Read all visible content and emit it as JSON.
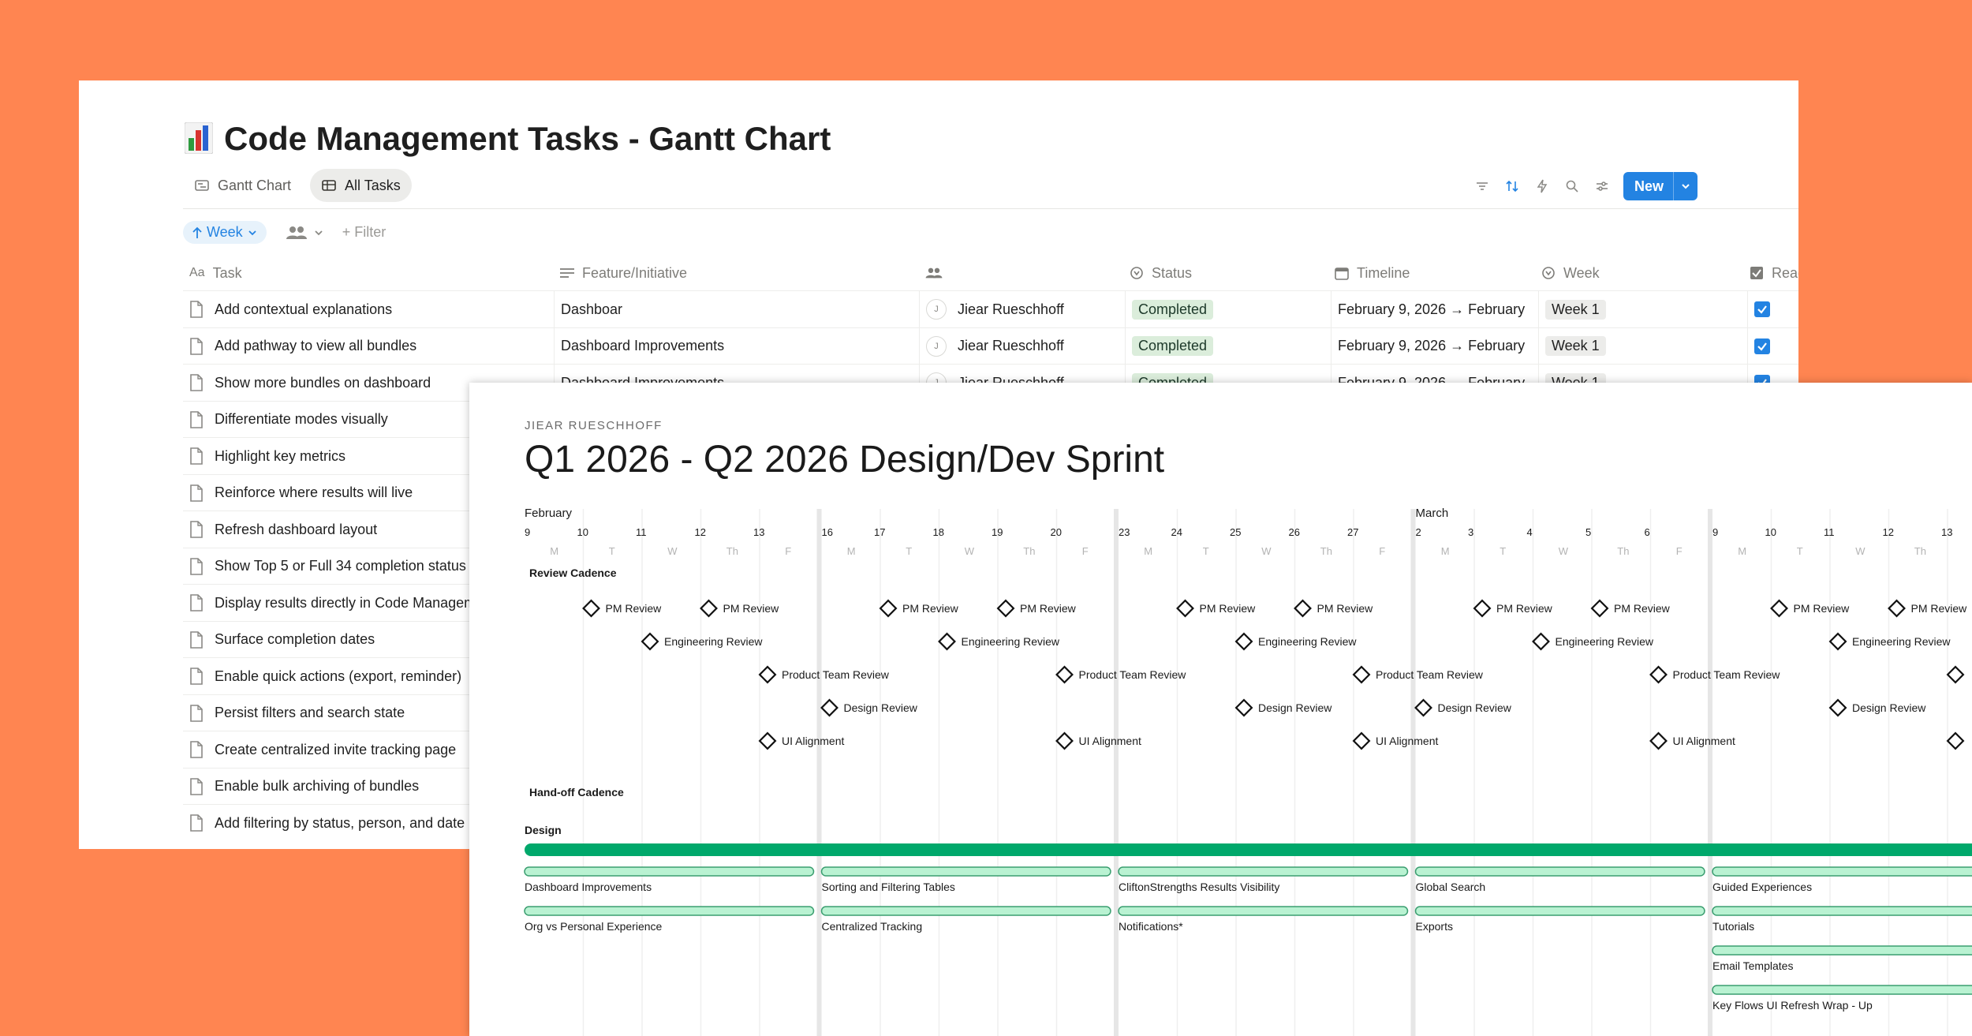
{
  "window": {
    "title": "Code Management Tasks - Gantt Chart",
    "tabs": [
      {
        "label": "Gantt Chart",
        "icon": "timeline-icon",
        "active": false
      },
      {
        "label": "All Tasks",
        "icon": "table-icon",
        "active": true
      }
    ],
    "toolbar": {
      "new_label": "New",
      "icons": [
        "filter-icon",
        "sort-icon",
        "automation-icon",
        "search-icon",
        "settings-icon"
      ]
    },
    "filters": {
      "sort_label": "Week",
      "filter_label": "+ Filter"
    }
  },
  "table": {
    "columns": [
      "Task",
      "Feature/Initiative",
      "",
      "Status",
      "Timeline",
      "Week",
      "Ready for Dev"
    ],
    "rows": [
      {
        "task": "Add contextual explanations",
        "feature": "Dashboar",
        "person": "Jiear Rueschhoff",
        "initial": "J",
        "status": "Completed",
        "timeline": "February 9, 2026 → February",
        "week": "Week 1",
        "ready": true
      },
      {
        "task": "Add pathway to view all bundles",
        "feature": "Dashboard Improvements",
        "person": "Jiear Rueschhoff",
        "initial": "J",
        "status": "Completed",
        "timeline": "February 9, 2026 → February",
        "week": "Week 1",
        "ready": true
      },
      {
        "task": "Show more bundles on dashboard",
        "feature": "Dashboard Improvements",
        "person": "Jiear Rueschhoff",
        "initial": "J",
        "status": "Completed",
        "timeline": "February 9, 2026 → February",
        "week": "Week 1",
        "ready": true
      },
      {
        "task": "Differentiate modes visually"
      },
      {
        "task": "Highlight key metrics"
      },
      {
        "task": "Reinforce where results will live"
      },
      {
        "task": "Refresh dashboard layout"
      },
      {
        "task": "Show Top 5 or Full 34 completion status"
      },
      {
        "task": "Display results directly in Code Management"
      },
      {
        "task": "Surface completion dates"
      },
      {
        "task": "Enable quick actions (export, reminder)"
      },
      {
        "task": "Persist filters and search state"
      },
      {
        "task": "Create centralized invite tracking page"
      },
      {
        "task": "Enable bulk archiving of bundles"
      },
      {
        "task": "Add filtering by status, person, and date"
      }
    ]
  },
  "gantt": {
    "owner": "JIEAR RUESCHHOFF",
    "title": "Q1 2026 - Q2 2026 Design/Dev Sprint",
    "months": [
      {
        "label": "February",
        "start_day": "9"
      },
      {
        "label": "March",
        "start_day": "2"
      }
    ],
    "days": [
      "9",
      "10",
      "11",
      "12",
      "13",
      "16",
      "17",
      "18",
      "19",
      "20",
      "23",
      "24",
      "25",
      "26",
      "27",
      "2",
      "3",
      "4",
      "5",
      "6",
      "9",
      "10",
      "11",
      "12",
      "13"
    ],
    "weekdays": [
      "M",
      "T",
      "W",
      "Th",
      "F"
    ],
    "sections": {
      "review": "Review Cadence",
      "handoff": "Hand-off Cadence",
      "design": "Design"
    },
    "colors": {
      "accent": "#00A86B",
      "bar_fill": "#B9F2D2",
      "bar_border": "#3B9E70",
      "weekend": "#E6E6E6",
      "grid": "#EFEFEF"
    },
    "milestones": [
      {
        "label": "PM Review",
        "day": 1,
        "row": 0
      },
      {
        "label": "PM Review",
        "day": 3,
        "row": 0
      },
      {
        "label": "PM Review",
        "day": 6,
        "row": 0
      },
      {
        "label": "PM Review",
        "day": 8,
        "row": 0
      },
      {
        "label": "PM Review",
        "day": 11,
        "row": 0
      },
      {
        "label": "PM Review",
        "day": 13,
        "row": 0
      },
      {
        "label": "PM Review",
        "day": 16,
        "row": 0
      },
      {
        "label": "PM Review",
        "day": 18,
        "row": 0
      },
      {
        "label": "PM Review",
        "day": 21,
        "row": 0
      },
      {
        "label": "PM Review",
        "day": 23,
        "row": 0
      },
      {
        "label": "Engineering Review",
        "day": 2,
        "row": 1
      },
      {
        "label": "Engineering Review",
        "day": 7,
        "row": 1
      },
      {
        "label": "Engineering Review",
        "day": 12,
        "row": 1
      },
      {
        "label": "Engineering Review",
        "day": 17,
        "row": 1
      },
      {
        "label": "Engineering Review",
        "day": 22,
        "row": 1
      },
      {
        "label": "Product Team Review",
        "day": 4,
        "row": 2
      },
      {
        "label": "Product Team Review",
        "day": 9,
        "row": 2
      },
      {
        "label": "Product Team Review",
        "day": 14,
        "row": 2
      },
      {
        "label": "Product Team Review",
        "day": 19,
        "row": 2
      },
      {
        "label": "",
        "day": 24,
        "row": 2
      },
      {
        "label": "Design Review",
        "day": 5,
        "row": 3
      },
      {
        "label": "Design Review",
        "day": 12,
        "row": 3
      },
      {
        "label": "Design Review",
        "day": 15,
        "row": 3
      },
      {
        "label": "Design Review",
        "day": 22,
        "row": 3
      },
      {
        "label": "UI Alignment",
        "day": 4,
        "row": 4
      },
      {
        "label": "UI Alignment",
        "day": 9,
        "row": 4
      },
      {
        "label": "UI Alignment",
        "day": 14,
        "row": 4
      },
      {
        "label": "UI Alignment",
        "day": 19,
        "row": 4
      },
      {
        "label": "",
        "day": 24,
        "row": 4
      }
    ],
    "bars": [
      {
        "label": "Dashboard Improvements",
        "week": 0,
        "row": 0
      },
      {
        "label": "Sorting and Filtering Tables",
        "week": 1,
        "row": 0
      },
      {
        "label": "CliftonStrengths Results Visibility",
        "week": 2,
        "row": 0
      },
      {
        "label": "Global Search",
        "week": 3,
        "row": 0
      },
      {
        "label": "Guided Experiences",
        "week": 4,
        "row": 0
      },
      {
        "label": "Org vs Personal Experience",
        "week": 0,
        "row": 1
      },
      {
        "label": "Centralized Tracking",
        "week": 1,
        "row": 1
      },
      {
        "label": "Notifications*",
        "week": 2,
        "row": 1
      },
      {
        "label": "Exports",
        "week": 3,
        "row": 1
      },
      {
        "label": "Tutorials",
        "week": 4,
        "row": 1
      },
      {
        "label": "Email Templates",
        "week": 4,
        "row": 2
      },
      {
        "label": "Key Flows UI Refresh Wrap - Up",
        "week": 4,
        "row": 3
      }
    ]
  }
}
